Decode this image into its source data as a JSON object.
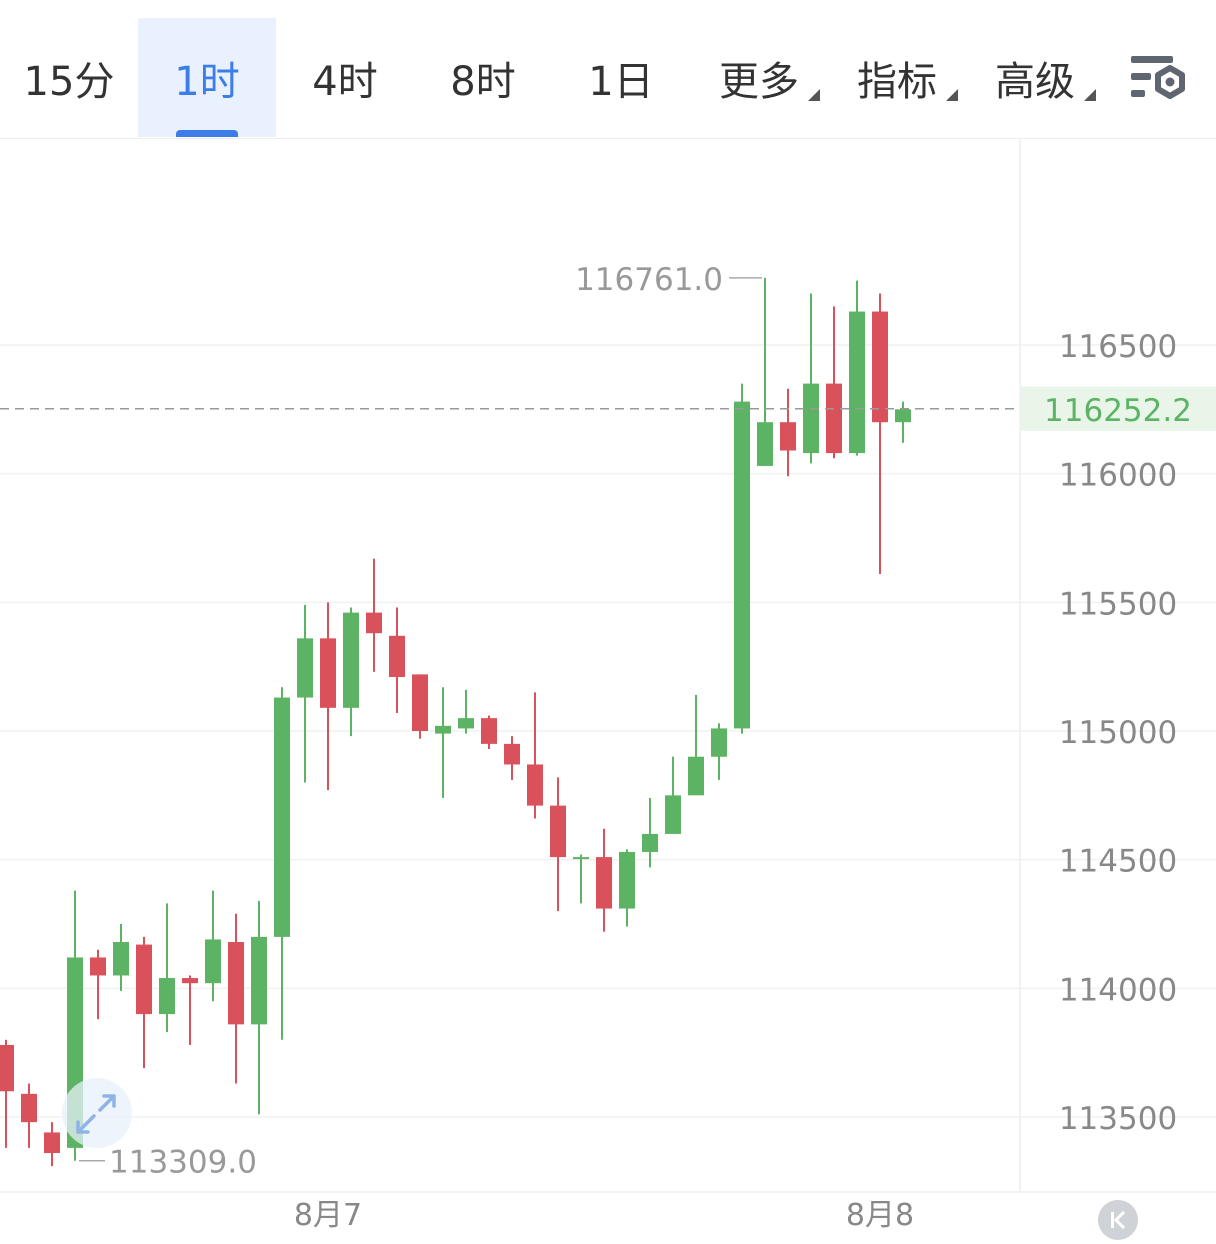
{
  "toolbar": {
    "tabs": [
      {
        "label": "15分",
        "active": false,
        "dropdown": false
      },
      {
        "label": "1时",
        "active": true,
        "dropdown": false
      },
      {
        "label": "4时",
        "active": false,
        "dropdown": false
      },
      {
        "label": "8时",
        "active": false,
        "dropdown": false
      },
      {
        "label": "1日",
        "active": false,
        "dropdown": false
      },
      {
        "label": "更多",
        "active": false,
        "dropdown": true
      },
      {
        "label": "指标",
        "active": false,
        "dropdown": true
      },
      {
        "label": "高级",
        "active": false,
        "dropdown": true
      }
    ],
    "settings_icon": "chart-settings-icon"
  },
  "colors": {
    "up": "#5cb363",
    "down": "#d9525b",
    "accent": "#3d7de8",
    "axis_text": "#888888",
    "price_highlight": "#5cb363"
  },
  "chart_data": {
    "type": "candlestick",
    "ylim": [
      113250,
      116800
    ],
    "y_ticks": [
      113500,
      114000,
      114500,
      115000,
      115500,
      116000,
      116500
    ],
    "y_tick_labels": [
      "113500",
      "114000",
      "114500",
      "115000",
      "115500",
      "116000",
      "116500"
    ],
    "x_labels": [
      {
        "label": "8月7",
        "index": 14
      },
      {
        "label": "8月8",
        "index": 38
      }
    ],
    "current_price": 116252.2,
    "current_price_label": "116252.2",
    "max_marker": {
      "label": "116761.0",
      "index": 33
    },
    "min_marker": {
      "label": "113309.0",
      "index": 3
    },
    "candles": [
      {
        "o": 113780,
        "h": 113800,
        "l": 113380,
        "c": 113600
      },
      {
        "o": 113590,
        "h": 113630,
        "l": 113380,
        "c": 113480
      },
      {
        "o": 113440,
        "h": 113480,
        "l": 113309,
        "c": 113360
      },
      {
        "o": 113380,
        "h": 114380,
        "l": 113330,
        "c": 114120
      },
      {
        "o": 114120,
        "h": 114150,
        "l": 113880,
        "c": 114050
      },
      {
        "o": 114050,
        "h": 114250,
        "l": 113990,
        "c": 114180
      },
      {
        "o": 114170,
        "h": 114200,
        "l": 113690,
        "c": 113900
      },
      {
        "o": 113900,
        "h": 114330,
        "l": 113830,
        "c": 114040
      },
      {
        "o": 114040,
        "h": 114050,
        "l": 113780,
        "c": 114020
      },
      {
        "o": 114020,
        "h": 114380,
        "l": 113950,
        "c": 114190
      },
      {
        "o": 114180,
        "h": 114290,
        "l": 113630,
        "c": 113860
      },
      {
        "o": 113860,
        "h": 114340,
        "l": 113510,
        "c": 114200
      },
      {
        "o": 114200,
        "h": 115170,
        "l": 113800,
        "c": 115130
      },
      {
        "o": 115130,
        "h": 115490,
        "l": 114800,
        "c": 115360
      },
      {
        "o": 115360,
        "h": 115500,
        "l": 114770,
        "c": 115090
      },
      {
        "o": 115090,
        "h": 115480,
        "l": 114980,
        "c": 115460
      },
      {
        "o": 115460,
        "h": 115670,
        "l": 115230,
        "c": 115380
      },
      {
        "o": 115370,
        "h": 115480,
        "l": 115070,
        "c": 115210
      },
      {
        "o": 115220,
        "h": 115220,
        "l": 114970,
        "c": 115000
      },
      {
        "o": 114990,
        "h": 115170,
        "l": 114740,
        "c": 115020
      },
      {
        "o": 115010,
        "h": 115160,
        "l": 114990,
        "c": 115050
      },
      {
        "o": 115050,
        "h": 115060,
        "l": 114930,
        "c": 114950
      },
      {
        "o": 114950,
        "h": 114980,
        "l": 114810,
        "c": 114870
      },
      {
        "o": 114870,
        "h": 115150,
        "l": 114660,
        "c": 114710
      },
      {
        "o": 114710,
        "h": 114820,
        "l": 114300,
        "c": 114510
      },
      {
        "o": 114510,
        "h": 114520,
        "l": 114330,
        "c": 114510
      },
      {
        "o": 114510,
        "h": 114620,
        "l": 114220,
        "c": 114310
      },
      {
        "o": 114310,
        "h": 114540,
        "l": 114240,
        "c": 114530
      },
      {
        "o": 114530,
        "h": 114740,
        "l": 114470,
        "c": 114600
      },
      {
        "o": 114600,
        "h": 114900,
        "l": 114600,
        "c": 114750
      },
      {
        "o": 114750,
        "h": 115140,
        "l": 114750,
        "c": 114900
      },
      {
        "o": 114900,
        "h": 115030,
        "l": 114810,
        "c": 115010
      },
      {
        "o": 115010,
        "h": 116350,
        "l": 114990,
        "c": 116280
      },
      {
        "o": 116030,
        "h": 116761,
        "l": 116030,
        "c": 116200
      },
      {
        "o": 116200,
        "h": 116330,
        "l": 115990,
        "c": 116090
      },
      {
        "o": 116080,
        "h": 116700,
        "l": 116040,
        "c": 116350
      },
      {
        "o": 116350,
        "h": 116650,
        "l": 116060,
        "c": 116080
      },
      {
        "o": 116080,
        "h": 116750,
        "l": 116070,
        "c": 116630
      },
      {
        "o": 116630,
        "h": 116700,
        "l": 115610,
        "c": 116200
      },
      {
        "o": 116200,
        "h": 116280,
        "l": 116120,
        "c": 116250
      }
    ]
  }
}
